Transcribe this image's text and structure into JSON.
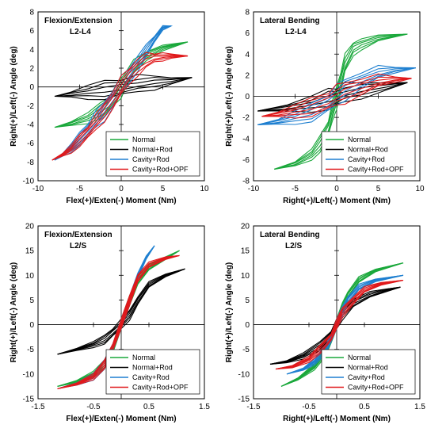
{
  "colors": {
    "Normal": "#1aa83b",
    "Normal+Rod": "#000000",
    "Cavity+Rod": "#1e7fd0",
    "Cavity+Rod+OPF": "#e0191b"
  },
  "chart_data": [
    {
      "type": "line",
      "title": "Flexion/Extension",
      "subtitle": "L2-L4",
      "xlabel": "Flex(+)/Exten(-) Moment (Nm)",
      "ylabel": "Right(+)/Left(-) Angle (deg)",
      "xlim": [
        -10,
        10
      ],
      "ylim": [
        -10,
        8
      ],
      "xticks": [
        -10,
        -5,
        0,
        5,
        10
      ],
      "yticks": [
        -10,
        -8,
        -6,
        -4,
        -2,
        0,
        2,
        4,
        6,
        8
      ],
      "xtick_labels": [
        "-10",
        "-5",
        "0",
        "5",
        "10"
      ],
      "ytick_labels": [
        "-10",
        "-8",
        "-6",
        "-4",
        "-2",
        "0",
        "2",
        "4",
        "6",
        "8"
      ],
      "legend": "bottom-right",
      "series": [
        {
          "name": "Normal",
          "x": [
            -8,
            -6,
            -4,
            -2.5,
            -1.5,
            -0.5,
            0,
            0.5,
            1.5,
            3,
            5,
            8
          ],
          "y": [
            -4.3,
            -3.9,
            -3.3,
            -2.5,
            -1.8,
            -0.8,
            0,
            0.8,
            2,
            3.3,
            4.2,
            4.8
          ]
        },
        {
          "name": "Normal+Rod",
          "x": [
            -8,
            -6,
            -4,
            -2,
            0,
            2,
            4,
            6,
            8.5
          ],
          "y": [
            -1,
            -0.8,
            -0.55,
            -0.3,
            0,
            0.25,
            0.5,
            0.7,
            1
          ]
        },
        {
          "name": "Cavity+Rod",
          "x": [
            -8,
            -7,
            -6,
            -5,
            -4,
            -3,
            -2,
            -1,
            0,
            1,
            2,
            3,
            4,
            5,
            6
          ],
          "y": [
            -7.8,
            -7.2,
            -6.5,
            -5.5,
            -4.5,
            -3.5,
            -2.5,
            -1.2,
            0,
            1.3,
            2.6,
            3.8,
            5.1,
            6.3,
            6.5
          ]
        },
        {
          "name": "Cavity+Rod+OPF",
          "x": [
            -8.3,
            -7,
            -6,
            -5,
            -4,
            -3,
            -2,
            -1,
            0,
            1,
            2,
            3,
            4,
            5,
            6,
            8
          ],
          "y": [
            -7.8,
            -7.2,
            -6.6,
            -5.7,
            -4.8,
            -3.8,
            -2.6,
            -1.3,
            0,
            1.2,
            2.2,
            2.8,
            3.1,
            3.2,
            3.3,
            3.3
          ]
        }
      ]
    },
    {
      "type": "line",
      "title": "Lateral Bending",
      "subtitle": "L2-L4",
      "xlabel": "Right(+)/Left(-) Moment (Nm)",
      "ylabel": "Right(+)/Left(-) Angle (deg)",
      "xlim": [
        -10,
        10
      ],
      "ylim": [
        -8,
        8
      ],
      "xticks": [
        -10,
        -5,
        0,
        5,
        10
      ],
      "yticks": [
        -8,
        -6,
        -4,
        -2,
        0,
        2,
        4,
        6,
        8
      ],
      "xtick_labels": [
        "-10",
        "-5",
        "0",
        "5",
        "10"
      ],
      "ytick_labels": [
        "-8",
        "-6",
        "-4",
        "-2",
        "0",
        "2",
        "4",
        "6",
        "8"
      ],
      "legend": "bottom-right",
      "series": [
        {
          "name": "Normal",
          "x": [
            -7.5,
            -5,
            -3,
            -2,
            -1,
            -0.5,
            0,
            0.5,
            1,
            2,
            3,
            5,
            8.5
          ],
          "y": [
            -6.9,
            -6.4,
            -5.5,
            -4.5,
            -3,
            -1.5,
            0,
            1.5,
            3,
            4.5,
            5,
            5.5,
            5.9
          ]
        },
        {
          "name": "Normal+Rod",
          "x": [
            -9.5,
            -6,
            -3,
            -1,
            0,
            1,
            3,
            6,
            8.5
          ],
          "y": [
            -1.4,
            -1.1,
            -0.7,
            -0.25,
            0,
            0.25,
            0.6,
            1,
            1.3
          ]
        },
        {
          "name": "Cavity+Rod",
          "x": [
            -9.5,
            -7,
            -5,
            -3,
            -1,
            0,
            1,
            3,
            5,
            7,
            9.5
          ],
          "y": [
            -2.7,
            -2.4,
            -2,
            -1.5,
            -0.6,
            0,
            0.7,
            1.6,
            2.2,
            2.5,
            2.7
          ]
        },
        {
          "name": "Cavity+Rod+OPF",
          "x": [
            -9,
            -7,
            -5,
            -3,
            -1,
            0,
            1,
            3,
            5,
            7,
            9
          ],
          "y": [
            -1.9,
            -1.7,
            -1.4,
            -1,
            -0.4,
            0,
            0.4,
            1,
            1.4,
            1.6,
            1.7
          ]
        }
      ]
    },
    {
      "type": "line",
      "title": "Flexion/Extension",
      "subtitle": "L2/S",
      "xlabel": "Flex(+)/Exten(-) Moment (Nm)",
      "ylabel": "Right(+)/Left(-) Angle (deg)",
      "xlim": [
        -1.5,
        1.5
      ],
      "ylim": [
        -15,
        20
      ],
      "xticks": [
        -1.5,
        -0.5,
        0.5,
        1.5
      ],
      "yticks": [
        -15,
        -10,
        -5,
        0,
        5,
        10,
        15,
        20
      ],
      "xtick_labels": [
        "-1.5",
        "-0.5",
        "0.5",
        "1.5"
      ],
      "ytick_labels": [
        "-15",
        "-10",
        "-5",
        "0",
        "5",
        "10",
        "15",
        "20"
      ],
      "legend": "bottom-right",
      "series": [
        {
          "name": "Normal",
          "x": [
            -1.15,
            -0.8,
            -0.5,
            -0.3,
            -0.15,
            0,
            0.15,
            0.3,
            0.5,
            0.8,
            1.05
          ],
          "y": [
            -12.5,
            -11.5,
            -10,
            -8,
            -5,
            0,
            5,
            9,
            11.5,
            13.5,
            15
          ]
        },
        {
          "name": "Normal+Rod",
          "x": [
            -1.15,
            -0.8,
            -0.5,
            -0.3,
            -0.15,
            0,
            0.15,
            0.3,
            0.5,
            0.8,
            1.15
          ],
          "y": [
            -6,
            -5,
            -4,
            -3,
            -1.5,
            0,
            2,
            5,
            8,
            10,
            11.3
          ]
        },
        {
          "name": "Cavity+Rod",
          "x": [
            -1.1,
            -0.8,
            -0.5,
            -0.3,
            -0.15,
            0,
            0.15,
            0.3,
            0.45,
            0.6
          ],
          "y": [
            -12.8,
            -12,
            -10.5,
            -8,
            -4.5,
            0,
            5,
            10,
            13.5,
            16
          ]
        },
        {
          "name": "Cavity+Rod+OPF",
          "x": [
            -1.15,
            -0.8,
            -0.5,
            -0.3,
            -0.15,
            0,
            0.15,
            0.3,
            0.5,
            0.8,
            1.05
          ],
          "y": [
            -13,
            -12,
            -10.5,
            -8,
            -4.5,
            0,
            5,
            9.5,
            12,
            13.5,
            14
          ]
        }
      ]
    },
    {
      "type": "line",
      "title": "Lateral Bending",
      "subtitle": "L2/S",
      "xlabel": "Right(+)/Left(-) Moment (Nm)",
      "ylabel": "Right(+)/Left(-) Angle (deg)",
      "xlim": [
        -1.5,
        1.5
      ],
      "ylim": [
        -15,
        20
      ],
      "xticks": [
        -1.5,
        -0.5,
        0.5,
        1.5
      ],
      "yticks": [
        -15,
        -10,
        -5,
        0,
        5,
        10,
        15,
        20
      ],
      "xtick_labels": [
        "-1.5",
        "-0.5",
        "0.5",
        "1.5"
      ],
      "ytick_labels": [
        "-15",
        "-10",
        "-5",
        "0",
        "5",
        "10",
        "15",
        "20"
      ],
      "legend": "bottom-right",
      "series": [
        {
          "name": "Normal",
          "x": [
            -1.0,
            -0.7,
            -0.4,
            -0.2,
            -0.1,
            0,
            0.1,
            0.2,
            0.4,
            0.7,
            1.2
          ],
          "y": [
            -12.5,
            -11,
            -8.5,
            -5.5,
            -3,
            0,
            3.5,
            6,
            9,
            11,
            12.5
          ]
        },
        {
          "name": "Normal+Rod",
          "x": [
            -1.2,
            -0.9,
            -0.6,
            -0.3,
            -0.1,
            0,
            0.1,
            0.3,
            0.6,
            0.9,
            1.15
          ],
          "y": [
            -8,
            -7.5,
            -6.3,
            -4.3,
            -2,
            0,
            2,
            4.5,
            6,
            7,
            7.6
          ]
        },
        {
          "name": "Cavity+Rod",
          "x": [
            -0.9,
            -0.6,
            -0.4,
            -0.2,
            -0.1,
            0,
            0.1,
            0.2,
            0.4,
            0.7,
            1.2
          ],
          "y": [
            -10,
            -9,
            -7.5,
            -5,
            -2.8,
            0,
            2.8,
            5,
            7.5,
            9,
            10
          ]
        },
        {
          "name": "Cavity+Rod+OPF",
          "x": [
            -1.1,
            -0.8,
            -0.5,
            -0.3,
            -0.1,
            0,
            0.1,
            0.3,
            0.5,
            0.8,
            1.2
          ],
          "y": [
            -9,
            -8.5,
            -7,
            -5,
            -2.5,
            0,
            2.5,
            5,
            7,
            8.3,
            9
          ]
        }
      ]
    }
  ]
}
